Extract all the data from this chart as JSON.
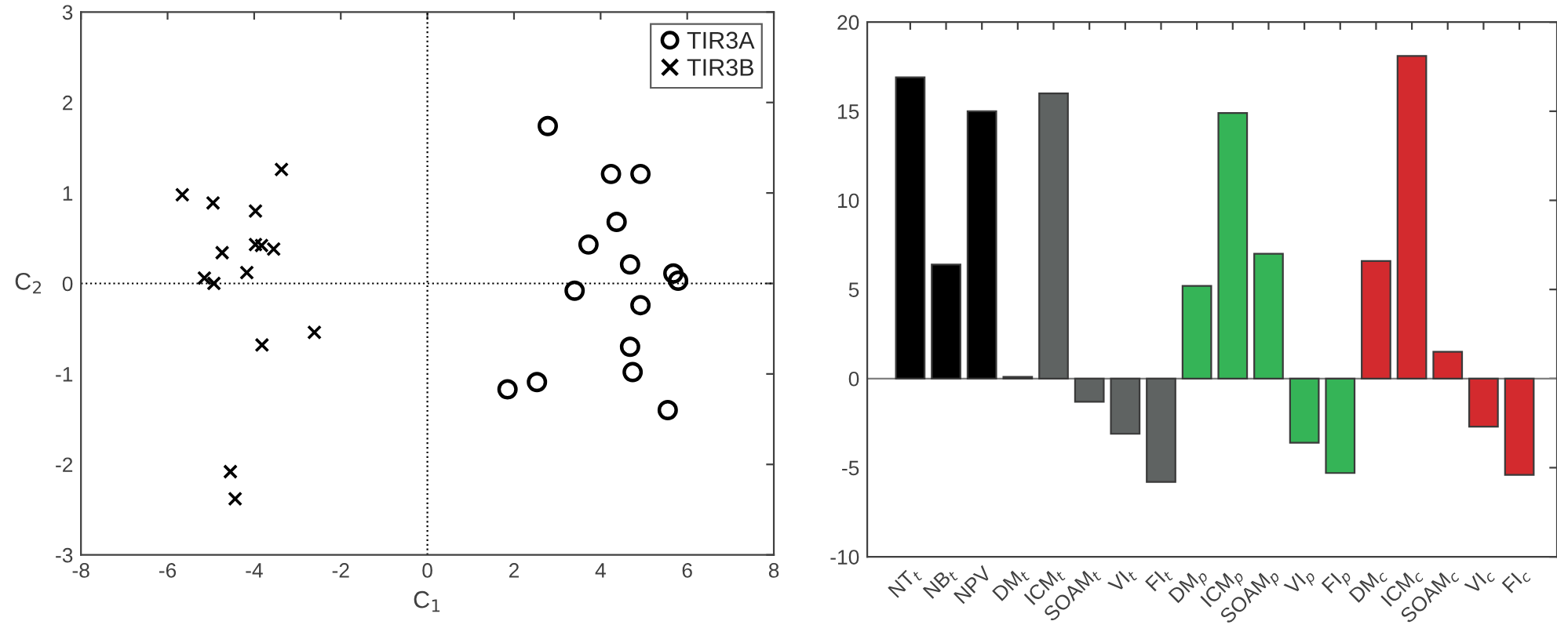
{
  "chart_data": [
    {
      "type": "scatter",
      "xlabel": "C$_{1}$",
      "ylabel": "C$_{2}$",
      "xlim": [
        -8,
        8
      ],
      "xticks": [
        -8,
        -6,
        -4,
        -2,
        0,
        2,
        4,
        6,
        8
      ],
      "ylim": [
        -3,
        3
      ],
      "yticks": [
        -3,
        -2,
        -1,
        0,
        1,
        2,
        3
      ],
      "grid": false,
      "legend": "top right",
      "ref_lines": [
        {
          "axis": "x",
          "value": 0,
          "color": "#000000",
          "line_style": "dotted"
        },
        {
          "axis": "y",
          "value": 0,
          "color": "#000000",
          "line_style": "dotted"
        }
      ],
      "series": [
        {
          "name": "TIR3A",
          "color": "#000000",
          "marker": "circle",
          "x": [
            2.78,
            4.24,
            4.92,
            4.37,
            3.72,
            4.68,
            5.68,
            5.79,
            3.4,
            4.92,
            4.68,
            4.74,
            2.53,
            1.85,
            5.55
          ],
          "values": [
            1.74,
            1.21,
            1.21,
            0.68,
            0.43,
            0.21,
            0.11,
            0.03,
            -0.08,
            -0.24,
            -0.7,
            -0.98,
            -1.09,
            -1.17,
            -1.4
          ]
        },
        {
          "name": "TIR3B",
          "color": "#000000",
          "marker": "cross",
          "x": [
            -5.66,
            -4.95,
            -3.37,
            -3.97,
            -3.97,
            -3.83,
            -3.55,
            -4.74,
            -4.17,
            -5.15,
            -4.93,
            -2.61,
            -3.82,
            -4.55,
            -4.44
          ],
          "values": [
            0.98,
            0.89,
            1.26,
            0.8,
            0.43,
            0.42,
            0.38,
            0.34,
            0.12,
            0.06,
            0.0,
            -0.54,
            -0.68,
            -2.08,
            -2.38
          ]
        }
      ]
    },
    {
      "type": "bar",
      "ylim": [
        -10,
        20
      ],
      "yticks": [
        -10,
        -5,
        0,
        5,
        10,
        15,
        20
      ],
      "grid": false,
      "ref_lines": [
        {
          "axis": "y",
          "value": 0,
          "color": "#808080",
          "line_style": "solid"
        }
      ],
      "categories": [
        "NT$_{t}$",
        "NB$_{t}$",
        "NPV",
        "DM$_{t}$",
        "ICM$_{t}$",
        "SOAM$_{t}$",
        "VI$_{t}$",
        "FI$_{t}$",
        "DM$_{p}$",
        "ICM$_{p}$",
        "SOAM$_{p}$",
        "VI$_{p}$",
        "FI$_{p}$",
        "DM$_{c}$",
        "ICM$_{c}$",
        "SOAM$_{c}$",
        "VI$_{c}$",
        "FI$_{c}$"
      ],
      "values": [
        16.9,
        6.4,
        15.0,
        0.1,
        16.0,
        -1.3,
        -3.1,
        -5.8,
        5.2,
        14.9,
        7.0,
        -3.6,
        -5.3,
        6.6,
        18.1,
        1.5,
        -2.7,
        -5.4
      ],
      "colors": [
        "#000000",
        "#000000",
        "#000000",
        "#000000",
        "#5f6362",
        "#5f6362",
        "#5f6362",
        "#5f6362",
        "#35b457",
        "#35b457",
        "#35b457",
        "#35b457",
        "#35b457",
        "#d32a2e",
        "#d32a2e",
        "#d32a2e",
        "#d32a2e",
        "#d32a2e"
      ]
    }
  ]
}
